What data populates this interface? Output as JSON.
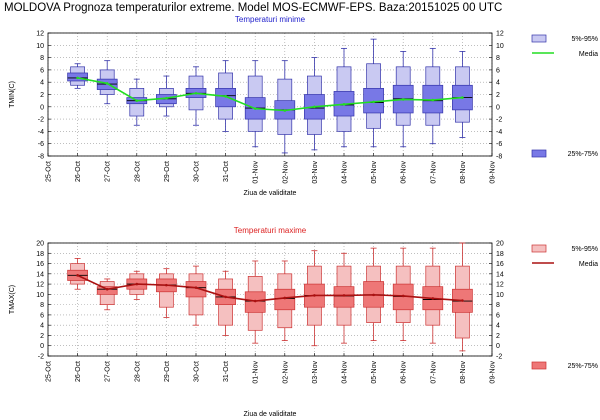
{
  "title": "MOLDOVA  Prognoza temperaturilor extreme.  Model MOS-ECMWF-EPS. Baza:20151025 00 UTC",
  "chart_data": [
    {
      "type": "boxplot",
      "title": "Temperaturi minime",
      "ylabel": "TMIN(C)",
      "xlabel": "Ziua de validitate",
      "ylim": [
        -8,
        12
      ],
      "yticks": [
        -8,
        -6,
        -4,
        -2,
        0,
        2,
        4,
        6,
        8,
        10,
        12
      ],
      "categories": [
        "25-Oct",
        "26-Oct",
        "27-Oct",
        "28-Oct",
        "29-Oct",
        "30-Oct",
        "31-Oct",
        "01-Nov",
        "02-Nov",
        "03-Nov",
        "04-Nov",
        "05-Nov",
        "06-Nov",
        "07-Nov",
        "08-Nov",
        "09-Nov"
      ],
      "colors": {
        "outer": "#c9c9f2",
        "inner": "#7878e6",
        "border": "#3333aa",
        "mean": "#22dd22",
        "median": "#000000",
        "title": "#2222cc"
      },
      "legend": {
        "outer": "5%-95%",
        "mean": "Media",
        "inner": "25%-75%"
      },
      "series": [
        {
          "date": "26-Oct",
          "whisker": [
            3.0,
            7.0
          ],
          "p5": 3.5,
          "p25": 4.2,
          "p75": 5.5,
          "p95": 6.5,
          "median": 4.7,
          "mean": 4.7
        },
        {
          "date": "27-Oct",
          "whisker": [
            0.5,
            7.5
          ],
          "p5": 2.0,
          "p25": 2.8,
          "p75": 4.5,
          "p95": 6.0,
          "median": 3.7,
          "mean": 3.8
        },
        {
          "date": "28-Oct",
          "whisker": [
            -3.0,
            4.5
          ],
          "p5": -1.5,
          "p25": 0.5,
          "p75": 1.5,
          "p95": 3.0,
          "median": 1.0,
          "mean": 1.0
        },
        {
          "date": "29-Oct",
          "whisker": [
            -1.5,
            5.0
          ],
          "p5": 0.0,
          "p25": 0.5,
          "p75": 2.0,
          "p95": 3.0,
          "median": 1.3,
          "mean": 1.4
        },
        {
          "date": "30-Oct",
          "whisker": [
            -3.0,
            6.5
          ],
          "p5": -0.5,
          "p25": 1.5,
          "p75": 3.0,
          "p95": 5.0,
          "median": 2.2,
          "mean": 2.2
        },
        {
          "date": "31-Oct",
          "whisker": [
            -4.0,
            7.5
          ],
          "p5": -2.0,
          "p25": 0.0,
          "p75": 3.0,
          "p95": 5.5,
          "median": 1.8,
          "mean": 1.7
        },
        {
          "date": "01-Nov",
          "whisker": [
            -6.5,
            7.5
          ],
          "p5": -4.0,
          "p25": -2.0,
          "p75": 1.5,
          "p95": 5.0,
          "median": -0.2,
          "mean": -0.3
        },
        {
          "date": "02-Nov",
          "whisker": [
            -7.5,
            7.5
          ],
          "p5": -4.5,
          "p25": -2.0,
          "p75": 1.0,
          "p95": 4.5,
          "median": -0.5,
          "mean": -0.6
        },
        {
          "date": "03-Nov",
          "whisker": [
            -7.0,
            8.0
          ],
          "p5": -4.5,
          "p25": -2.0,
          "p75": 2.0,
          "p95": 5.0,
          "median": -0.2,
          "mean": 0.0
        },
        {
          "date": "04-Nov",
          "whisker": [
            -6.5,
            9.5
          ],
          "p5": -4.0,
          "p25": -1.5,
          "p75": 2.5,
          "p95": 6.5,
          "median": 0.3,
          "mean": 0.4
        },
        {
          "date": "05-Nov",
          "whisker": [
            -6.5,
            11.0
          ],
          "p5": -3.5,
          "p25": -1.0,
          "p75": 3.0,
          "p95": 7.0,
          "median": 0.7,
          "mean": 0.8
        },
        {
          "date": "06-Nov",
          "whisker": [
            -6.5,
            9.0
          ],
          "p5": -3.0,
          "p25": -1.0,
          "p75": 3.5,
          "p95": 6.5,
          "median": 1.3,
          "mean": 1.2
        },
        {
          "date": "07-Nov",
          "whisker": [
            -6.0,
            9.5
          ],
          "p5": -3.0,
          "p25": -1.0,
          "p75": 3.5,
          "p95": 6.5,
          "median": 1.0,
          "mean": 1.1
        },
        {
          "date": "08-Nov",
          "whisker": [
            -5.0,
            9.0
          ],
          "p5": -2.5,
          "p25": -0.5,
          "p75": 3.5,
          "p95": 6.5,
          "median": 1.5,
          "mean": 1.5
        }
      ]
    },
    {
      "type": "boxplot",
      "title": "Temperaturi maxime",
      "ylabel": "TMAX(C)",
      "xlabel": "Ziua de validitate",
      "ylim": [
        -2,
        20
      ],
      "yticks": [
        -2,
        0,
        2,
        4,
        6,
        8,
        10,
        12,
        14,
        16,
        18,
        20
      ],
      "categories": [
        "25-Oct",
        "26-Oct",
        "27-Oct",
        "28-Oct",
        "29-Oct",
        "30-Oct",
        "31-Oct",
        "01-Nov",
        "02-Nov",
        "03-Nov",
        "04-Nov",
        "05-Nov",
        "06-Nov",
        "07-Nov",
        "08-Nov",
        "09-Nov"
      ],
      "colors": {
        "outer": "#f5c0c0",
        "inner": "#ee7777",
        "border": "#cc3333",
        "mean": "#aa1111",
        "median": "#000000",
        "title": "#dd2222"
      },
      "legend": {
        "outer": "5%-95%",
        "mean": "Media",
        "inner": "25%-75%"
      },
      "series": [
        {
          "date": "26-Oct",
          "whisker": [
            11.0,
            17.0
          ],
          "p5": 12.0,
          "p25": 12.7,
          "p75": 14.7,
          "p95": 16.0,
          "median": 13.7,
          "mean": 13.7
        },
        {
          "date": "27-Oct",
          "whisker": [
            7.0,
            13.0
          ],
          "p5": 8.0,
          "p25": 10.0,
          "p75": 11.5,
          "p95": 12.5,
          "median": 11.0,
          "mean": 11.0
        },
        {
          "date": "28-Oct",
          "whisker": [
            9.0,
            14.5
          ],
          "p5": 10.0,
          "p25": 11.0,
          "p75": 13.0,
          "p95": 14.0,
          "median": 12.0,
          "mean": 12.0
        },
        {
          "date": "29-Oct",
          "whisker": [
            5.5,
            15.0
          ],
          "p5": 7.5,
          "p25": 10.5,
          "p75": 13.0,
          "p95": 14.0,
          "median": 11.8,
          "mean": 11.8
        },
        {
          "date": "30-Oct",
          "whisker": [
            4.0,
            15.5
          ],
          "p5": 6.0,
          "p25": 9.5,
          "p75": 12.5,
          "p95": 14.0,
          "median": 11.3,
          "mean": 11.3
        },
        {
          "date": "31-Oct",
          "whisker": [
            2.0,
            14.5
          ],
          "p5": 4.0,
          "p25": 8.0,
          "p75": 11.0,
          "p95": 13.0,
          "median": 9.5,
          "mean": 9.5
        },
        {
          "date": "01-Nov",
          "whisker": [
            0.5,
            16.5
          ],
          "p5": 3.0,
          "p25": 6.5,
          "p75": 10.5,
          "p95": 13.5,
          "median": 8.7,
          "mean": 8.7
        },
        {
          "date": "02-Nov",
          "whisker": [
            1.0,
            16.5
          ],
          "p5": 3.5,
          "p25": 7.0,
          "p75": 11.0,
          "p95": 14.0,
          "median": 9.2,
          "mean": 9.3
        },
        {
          "date": "03-Nov",
          "whisker": [
            0.0,
            18.5
          ],
          "p5": 4.0,
          "p25": 7.5,
          "p75": 12.0,
          "p95": 15.5,
          "median": 9.8,
          "mean": 9.8
        },
        {
          "date": "04-Nov",
          "whisker": [
            0.5,
            18.0
          ],
          "p5": 4.0,
          "p25": 7.5,
          "p75": 11.5,
          "p95": 15.5,
          "median": 9.7,
          "mean": 9.8
        },
        {
          "date": "05-Nov",
          "whisker": [
            1.0,
            19.0
          ],
          "p5": 4.5,
          "p25": 7.5,
          "p75": 12.5,
          "p95": 15.5,
          "median": 9.9,
          "mean": 9.9
        },
        {
          "date": "06-Nov",
          "whisker": [
            1.0,
            19.0
          ],
          "p5": 4.5,
          "p25": 7.0,
          "p75": 12.0,
          "p95": 15.5,
          "median": 9.6,
          "mean": 9.7
        },
        {
          "date": "07-Nov",
          "whisker": [
            0.5,
            19.0
          ],
          "p5": 4.0,
          "p25": 7.0,
          "p75": 11.5,
          "p95": 15.5,
          "median": 9.0,
          "mean": 9.2
        },
        {
          "date": "08-Nov",
          "whisker": [
            -1.0,
            20.0
          ],
          "p5": 1.5,
          "p25": 6.5,
          "p75": 11.0,
          "p95": 15.5,
          "median": 8.7,
          "mean": 8.8
        }
      ]
    }
  ]
}
